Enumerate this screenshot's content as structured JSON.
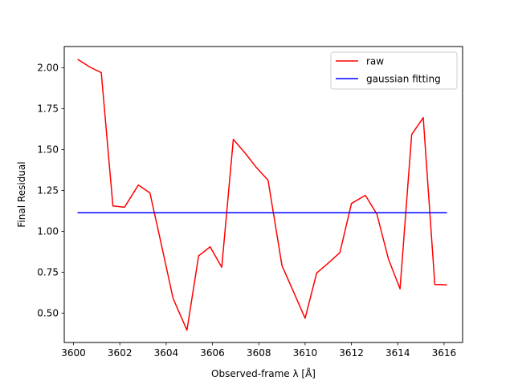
{
  "chart_data": {
    "type": "line",
    "xlabel": "Observed-frame λ [Å]",
    "ylabel": "Final Residual",
    "xlim": [
      3599.6,
      3616.8
    ],
    "ylim": [
      0.32,
      2.13
    ],
    "x_ticks": [
      3600,
      3602,
      3604,
      3606,
      3608,
      3610,
      3612,
      3614,
      3616
    ],
    "x_tick_labels": [
      "3600",
      "3602",
      "3604",
      "3606",
      "3608",
      "3610",
      "3612",
      "3614",
      "3616"
    ],
    "y_ticks": [
      0.5,
      0.75,
      1.0,
      1.25,
      1.5,
      1.75,
      2.0
    ],
    "y_tick_labels": [
      "0.50",
      "0.75",
      "1.00",
      "1.25",
      "1.50",
      "1.75",
      "2.00"
    ],
    "grid": false,
    "legend": {
      "position": "top-right"
    },
    "series": [
      {
        "name": "raw",
        "color": "#ff0000",
        "points": [
          [
            3600.2,
            2.05
          ],
          [
            3600.7,
            2.005
          ],
          [
            3601.2,
            1.97
          ],
          [
            3601.7,
            1.155
          ],
          [
            3602.2,
            1.147
          ],
          [
            3602.8,
            1.283
          ],
          [
            3603.3,
            1.235
          ],
          [
            3603.8,
            0.915
          ],
          [
            3604.3,
            0.59
          ],
          [
            3604.9,
            0.395
          ],
          [
            3605.4,
            0.85
          ],
          [
            3605.9,
            0.905
          ],
          [
            3606.4,
            0.78
          ],
          [
            3606.9,
            1.562
          ],
          [
            3607.4,
            1.48
          ],
          [
            3607.9,
            1.39
          ],
          [
            3608.4,
            1.312
          ],
          [
            3609.0,
            0.79
          ],
          [
            3609.5,
            0.63
          ],
          [
            3610.0,
            0.468
          ],
          [
            3610.5,
            0.745
          ],
          [
            3611.0,
            0.805
          ],
          [
            3611.5,
            0.87
          ],
          [
            3612.0,
            1.17
          ],
          [
            3612.6,
            1.22
          ],
          [
            3613.1,
            1.105
          ],
          [
            3613.6,
            0.83
          ],
          [
            3614.1,
            0.648
          ],
          [
            3614.6,
            1.592
          ],
          [
            3615.1,
            1.695
          ],
          [
            3615.6,
            0.675
          ],
          [
            3616.1,
            0.672
          ]
        ]
      },
      {
        "name": "gaussian fitting",
        "color": "#0000ff",
        "points": [
          [
            3600.2,
            1.113
          ],
          [
            3616.1,
            1.113
          ]
        ]
      }
    ]
  }
}
